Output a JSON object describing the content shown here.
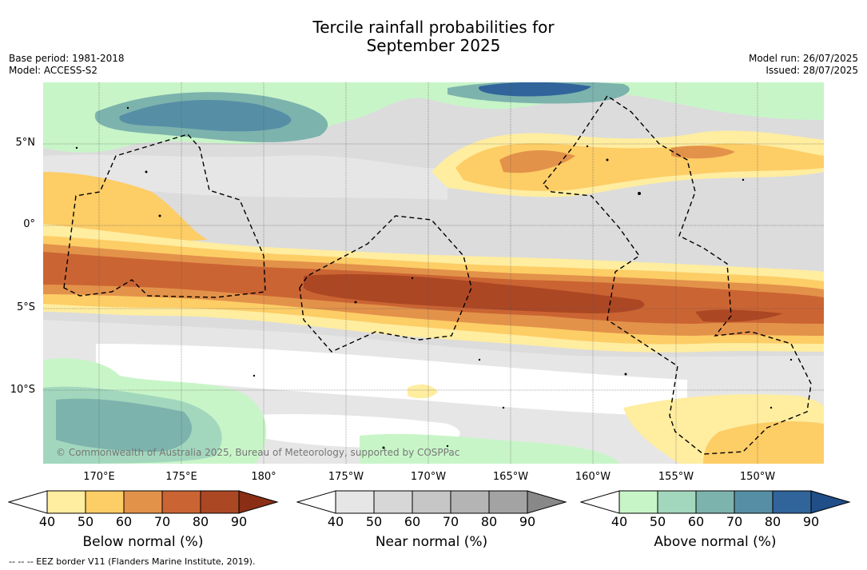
{
  "title_line1": "Tercile rainfall probabilities for",
  "title_line2": "September 2025",
  "base_period": "Base period: 1981-2018",
  "model": "Model: ACCESS-S2",
  "model_run": "Model run: 26/07/2025",
  "issued": "Issued: 28/07/2025",
  "lat_labels": [
    "5°N",
    "0°",
    "5°S",
    "10°S"
  ],
  "lon_labels": [
    "170°E",
    "175°E",
    "180°",
    "175°W",
    "170°W",
    "165°W",
    "160°W",
    "155°W",
    "150°W"
  ],
  "copyright": "© Commonwealth of Australia 2025, Bureau of Meteorology, supported by COSPPac",
  "colorbars": [
    {
      "label": "Below normal (%)",
      "ticks": [
        "40",
        "50",
        "60",
        "70",
        "80",
        "90"
      ],
      "colors": [
        "#ffffff",
        "#ffeda0",
        "#fdcd66",
        "#e3924a",
        "#cb6433",
        "#ac4724",
        "#8a2e16"
      ]
    },
    {
      "label": "Near normal (%)",
      "ticks": [
        "40",
        "50",
        "60",
        "70",
        "80",
        "90"
      ],
      "colors": [
        "#ffffff",
        "#e6e6e6",
        "#d7d7d7",
        "#c6c6c6",
        "#b4b4b4",
        "#a3a3a3",
        "#888888"
      ]
    },
    {
      "label": "Above normal (%)",
      "ticks": [
        "40",
        "50",
        "60",
        "70",
        "80",
        "90"
      ],
      "colors": [
        "#ffffff",
        "#c8f5c8",
        "#a3d7bd",
        "#7db3ad",
        "#568fa5",
        "#30649a",
        "#1f4e88"
      ]
    }
  ],
  "footnote": "-- -- -- EEZ border V11 (Flanders Marine Institute, 2019)."
}
